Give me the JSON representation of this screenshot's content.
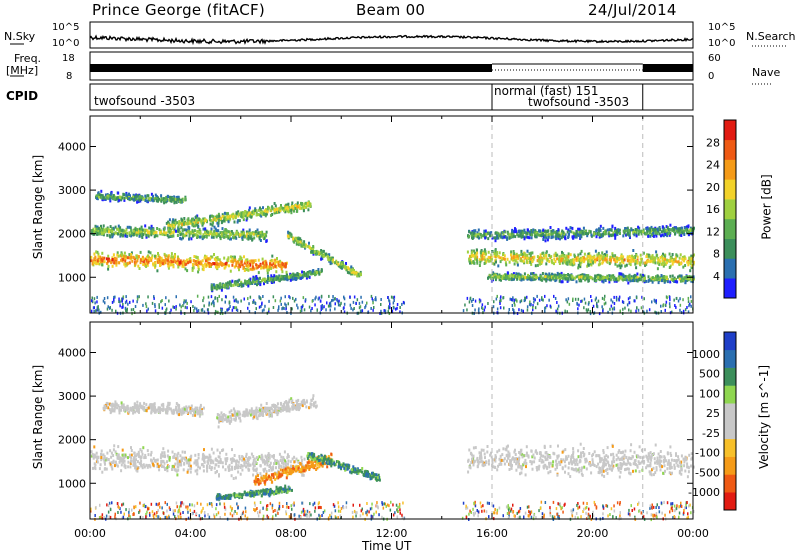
{
  "header": {
    "station": "Prince George (fitACF)",
    "beam": "Beam 00",
    "date": "24/Jul/2014"
  },
  "noise_panel": {
    "left_label": "N.Sky",
    "right_label": "N.Search",
    "left_ticks": [
      "10^5",
      "10^0"
    ],
    "right_ticks": [
      "10^5",
      "10^0"
    ]
  },
  "freq_panel": {
    "left_label_line1": "Freq.",
    "left_label_line2": "[MHz]",
    "left_ticks": [
      "18",
      "8"
    ],
    "right_label": "Nave",
    "right_ticks": [
      "60",
      "0"
    ]
  },
  "cpid_panel": {
    "label": "CPID",
    "segments": [
      {
        "start_hour": 0,
        "end_hour": 16,
        "lines": [
          "twofsound -3503"
        ]
      },
      {
        "start_hour": 16,
        "end_hour": 22,
        "lines": [
          "normal (fast) 151",
          "twofsound -3503"
        ]
      },
      {
        "start_hour": 22,
        "end_hour": 24,
        "lines": []
      }
    ]
  },
  "colors": {
    "power_scale": [
      "#1f1fff",
      "#2b6fb0",
      "#3c8f5b",
      "#5cae52",
      "#9fd040",
      "#f2d22a",
      "#f59b18",
      "#ef5a14",
      "#e21b12"
    ],
    "velocity_scale": [
      "#e21b12",
      "#ef5a14",
      "#f59b18",
      "#f7c02a",
      "#c8c8c8",
      "#c8c8c8",
      "#8fd650",
      "#3c8f5b",
      "#2b6fb0",
      "#1f3fc8"
    ]
  },
  "chart_data": [
    {
      "type": "heatmap",
      "name": "power-panel",
      "xlabel": "",
      "ylabel": "Slant Range [km]",
      "xlim": [
        0,
        24
      ],
      "ylim": [
        180,
        4700
      ],
      "yticks": [
        "1000",
        "2000",
        "3000",
        "4000"
      ],
      "ytick_values": [
        1000,
        2000,
        3000,
        4000
      ],
      "colorbar": {
        "label": "Power [dB]",
        "tick_labels": [
          "4",
          "8",
          "12",
          "16",
          "20",
          "24",
          "28"
        ],
        "range": [
          0,
          32
        ]
      },
      "echo_bands": [
        {
          "start_hour": 0.0,
          "end_hour": 7.8,
          "center_km_start": 1450,
          "center_km_end": 1300,
          "width_km": 500,
          "level": 0.85
        },
        {
          "start_hour": 0.0,
          "end_hour": 7.0,
          "center_km_start": 2100,
          "center_km_end": 2000,
          "width_km": 350,
          "level": 0.55
        },
        {
          "start_hour": 0.2,
          "end_hour": 3.8,
          "center_km_start": 2900,
          "center_km_end": 2800,
          "width_km": 250,
          "level": 0.45
        },
        {
          "start_hour": 3.0,
          "end_hour": 8.8,
          "center_km_start": 2200,
          "center_km_end": 2700,
          "width_km": 350,
          "level": 0.6
        },
        {
          "start_hour": 7.8,
          "end_hour": 10.8,
          "center_km_start": 2000,
          "center_km_end": 1050,
          "width_km": 300,
          "level": 0.55
        },
        {
          "start_hour": 4.8,
          "end_hour": 9.2,
          "center_km_start": 800,
          "center_km_end": 1150,
          "width_km": 250,
          "level": 0.45
        },
        {
          "start_hour": 15.0,
          "end_hour": 24.0,
          "center_km_start": 1500,
          "center_km_end": 1400,
          "width_km": 500,
          "level": 0.7
        },
        {
          "start_hour": 15.8,
          "end_hour": 24.0,
          "center_km_start": 1050,
          "center_km_end": 1000,
          "width_km": 250,
          "level": 0.5
        },
        {
          "start_hour": 15.0,
          "end_hour": 24.0,
          "center_km_start": 2000,
          "center_km_end": 2100,
          "width_km": 350,
          "level": 0.4
        }
      ]
    },
    {
      "type": "heatmap",
      "name": "velocity-panel",
      "xlabel": "Time UT",
      "ylabel": "Slant Range [km]",
      "xlim": [
        0,
        24
      ],
      "ylim": [
        180,
        4700
      ],
      "xticks": [
        "00:00",
        "04:00",
        "08:00",
        "12:00",
        "16:00",
        "20:00",
        "00:00"
      ],
      "xtick_values": [
        0,
        4,
        8,
        12,
        16,
        20,
        24
      ],
      "yticks": [
        "1000",
        "2000",
        "3000",
        "4000"
      ],
      "ytick_values": [
        1000,
        2000,
        3000,
        4000
      ],
      "colorbar": {
        "label": "Velocity [m s^-1]",
        "tick_labels": [
          "1000",
          "500",
          "100",
          "25",
          "-25",
          "-100",
          "-500",
          "-1000"
        ]
      },
      "echo_bands": [
        {
          "start_hour": 0.0,
          "end_hour": 8.5,
          "center_km_start": 1600,
          "center_km_end": 1450,
          "width_km": 800,
          "class": "low"
        },
        {
          "start_hour": 0.5,
          "end_hour": 4.5,
          "center_km_start": 2800,
          "center_km_end": 2700,
          "width_km": 350,
          "class": "low"
        },
        {
          "start_hour": 5.0,
          "end_hour": 9.0,
          "center_km_start": 2500,
          "center_km_end": 2900,
          "width_km": 400,
          "class": "low"
        },
        {
          "start_hour": 15.0,
          "end_hour": 24.0,
          "center_km_start": 1600,
          "center_km_end": 1500,
          "width_km": 900,
          "class": "low"
        },
        {
          "start_hour": 6.5,
          "end_hour": 9.6,
          "center_km_start": 1050,
          "center_km_end": 1600,
          "width_km": 350,
          "class": "neg"
        },
        {
          "start_hour": 5.0,
          "end_hour": 8.0,
          "center_km_start": 700,
          "center_km_end": 900,
          "width_km": 200,
          "class": "pos"
        },
        {
          "start_hour": 8.6,
          "end_hour": 11.5,
          "center_km_start": 1700,
          "center_km_end": 1150,
          "width_km": 250,
          "class": "pos"
        }
      ]
    }
  ]
}
